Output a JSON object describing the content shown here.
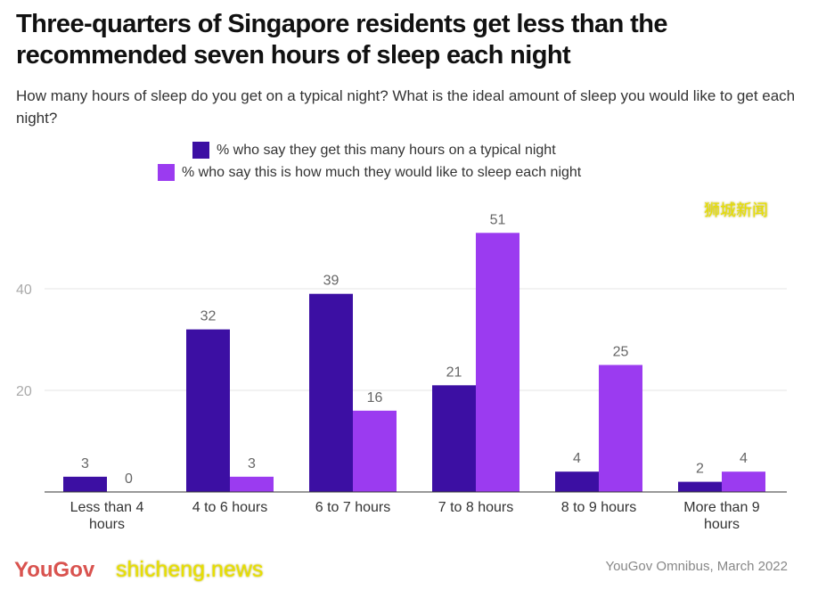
{
  "title": "Three-quarters of Singapore residents get less than the recommended seven hours of sleep each night",
  "subtitle": "How many hours of sleep do you get on a typical night? What is the ideal amount of sleep you would like to get each night?",
  "source": "YouGov Omnibus, March 2022",
  "logo": "YouGov",
  "watermarks": {
    "cn": "狮城新闻",
    "en": "shicheng.news"
  },
  "colors": {
    "typical": "#3c0fa3",
    "ideal": "#9b3bf0"
  },
  "chart_data": {
    "type": "bar",
    "categories": [
      "Less than 4 hours",
      "4 to 6 hours",
      "6 to 7 hours",
      "7 to 8 hours",
      "8 to 9 hours",
      "More than 9 hours"
    ],
    "series": [
      {
        "name": "% who say they get this many hours on a typical night",
        "values": [
          3,
          32,
          39,
          21,
          4,
          2
        ]
      },
      {
        "name": "% who say this is how much they would like to sleep each night",
        "values": [
          0,
          3,
          16,
          51,
          25,
          4
        ]
      }
    ],
    "yticks": [
      20,
      40
    ],
    "ylim": [
      0,
      55
    ],
    "grid": true,
    "legend": "top-center"
  }
}
